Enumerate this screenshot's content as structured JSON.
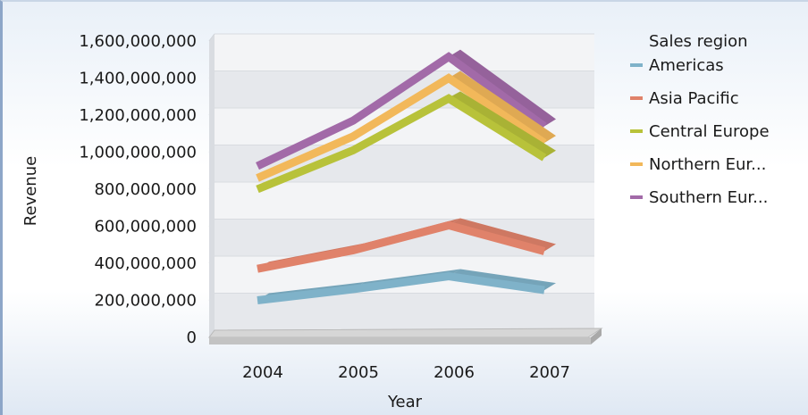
{
  "chart_data": {
    "type": "line",
    "title": "",
    "xlabel": "Year",
    "ylabel": "Revenue",
    "categories": [
      "2004",
      "2005",
      "2006",
      "2007"
    ],
    "ylim": [
      0,
      1600000000
    ],
    "yticks": [
      0,
      200000000,
      400000000,
      600000000,
      800000000,
      1000000000,
      1200000000,
      1400000000,
      1600000000
    ],
    "ytick_labels": [
      "0",
      "200,000,000",
      "400,000,000",
      "600,000,000",
      "800,000,000",
      "1,000,000,000",
      "1,200,000,000",
      "1,400,000,000",
      "1,600,000,000"
    ],
    "legend_title": "Sales region",
    "legend_position": "right",
    "stacked": true,
    "series": [
      {
        "name": "Americas",
        "color": "#7fb2c9",
        "values": [
          200000000,
          260000000,
          330000000,
          255000000
        ]
      },
      {
        "name": "Asia Pacific",
        "color": "#e0826a",
        "values": [
          370000000,
          470000000,
          605000000,
          465000000
        ]
      },
      {
        "name": "Central Europe",
        "color": "#b8c23a",
        "values": [
          800000000,
          1010000000,
          1290000000,
          970000000
        ]
      },
      {
        "name": "Northern Eur...",
        "color": "#f2b85a",
        "values": [
          860000000,
          1085000000,
          1400000000,
          1050000000
        ]
      },
      {
        "name": "Southern Eur...",
        "color": "#a26aa8",
        "values": [
          925000000,
          1170000000,
          1515000000,
          1140000000
        ]
      }
    ]
  }
}
